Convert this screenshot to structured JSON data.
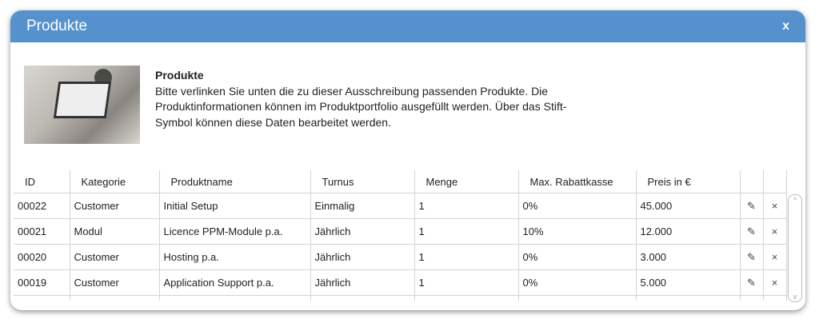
{
  "dialog": {
    "title": "Produkte",
    "close_label": "x"
  },
  "intro": {
    "heading": "Produkte",
    "text": "Bitte verlinken Sie unten die zu dieser Ausschreibung passenden Produkte. Die Produktinformationen können im Produktportfolio ausgefüllt werden. Über das Stift-Symbol können diese Daten bearbeitet werden."
  },
  "table": {
    "headers": [
      "ID",
      "Kategorie",
      "Produktname",
      "Turnus",
      "Menge",
      "Max. Rabattkasse",
      "Preis in €"
    ],
    "rows": [
      [
        "00022",
        "Customer",
        "Initial Setup",
        "Einmalig",
        "1",
        "0%",
        "45.000"
      ],
      [
        "00021",
        "Modul",
        "Licence PPM-Module p.a.",
        "Jährlich",
        "1",
        "10%",
        "12.000"
      ],
      [
        "00020",
        "Customer",
        "Hosting p.a.",
        "Jährlich",
        "1",
        "0%",
        "3.000"
      ],
      [
        "00019",
        "Customer",
        "Application Support p.a.",
        "Jährlich",
        "1",
        "0%",
        "5.000"
      ]
    ]
  },
  "icons": {
    "edit": "✎",
    "delete": "×",
    "up": "^",
    "down": "v"
  }
}
